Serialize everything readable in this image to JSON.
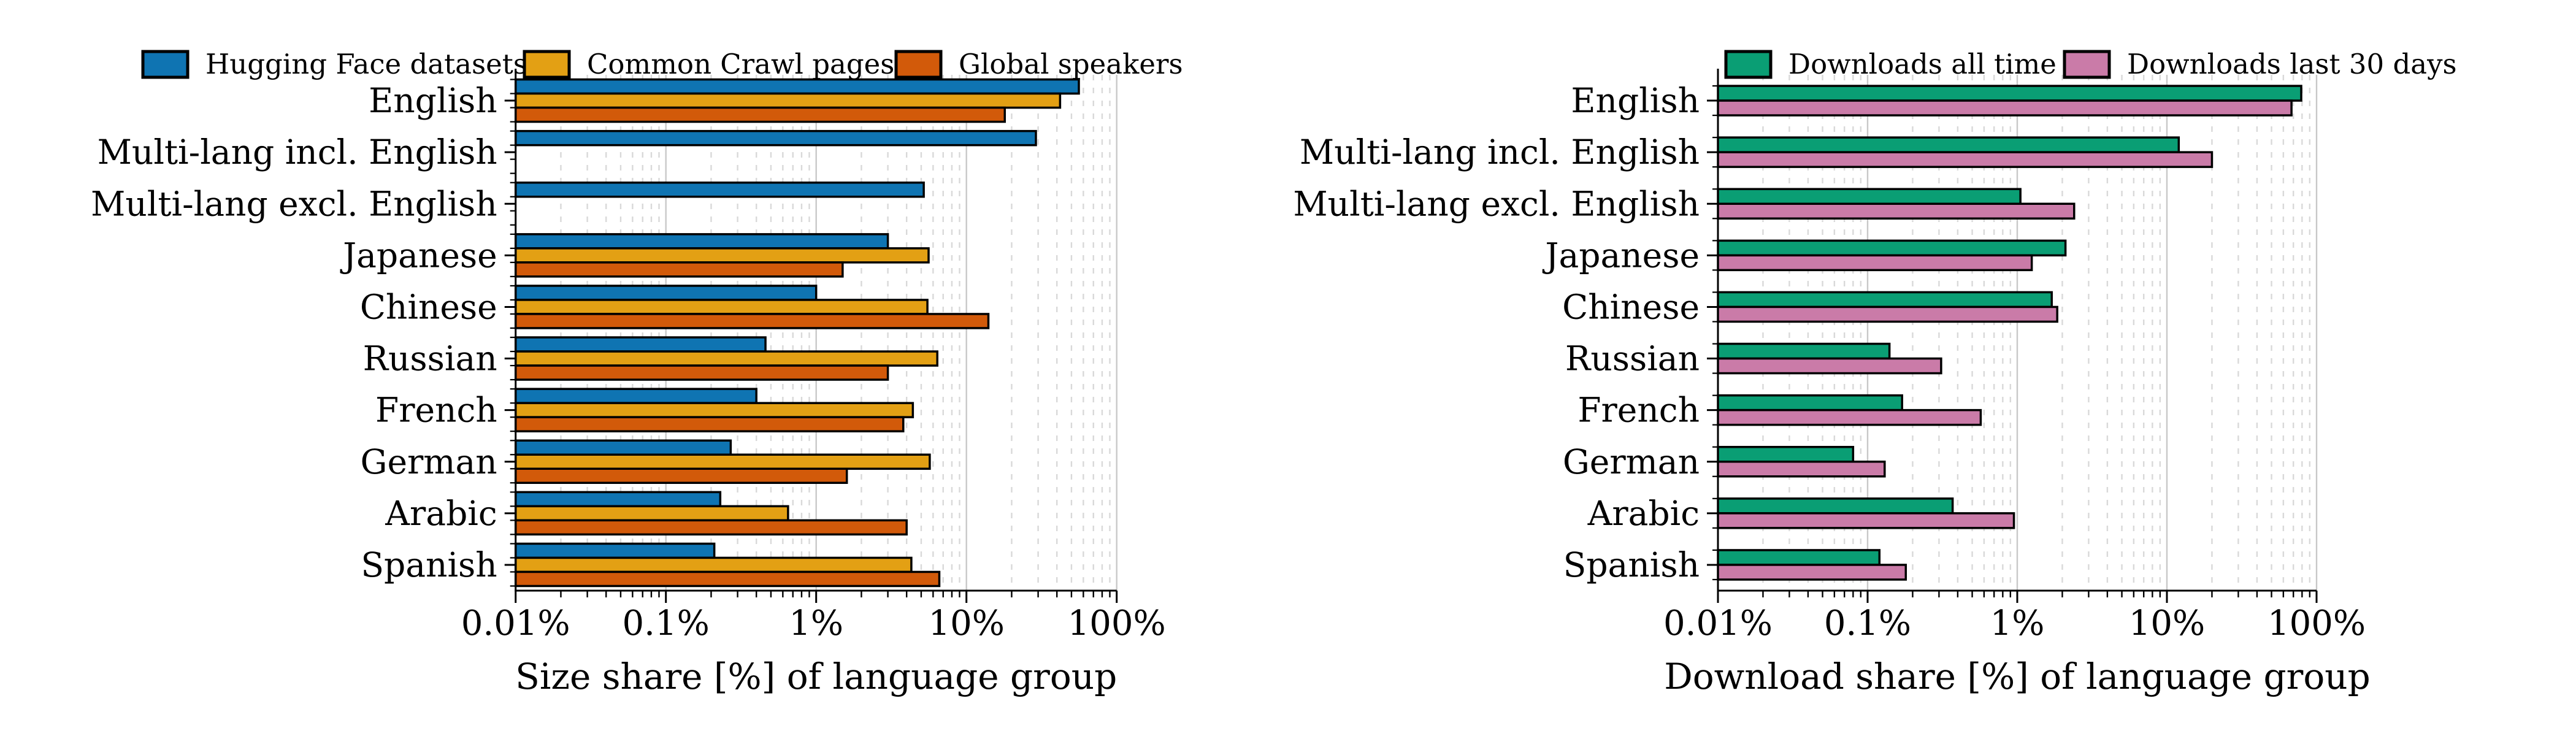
{
  "page": {
    "background": "#ffffff",
    "text_color": "#000000",
    "grid_major_color": "#c8c8c8",
    "grid_minor_color": "#d9d9d9",
    "bar_edge_color": "#000000"
  },
  "chart_data": [
    {
      "type": "bar",
      "orientation": "horizontal",
      "title": "",
      "xlabel": "Size share [%] of language group",
      "ylabel": "",
      "x_scale": "log",
      "xlim_percent": [
        0.01,
        100
      ],
      "x_tick_labels": [
        "0.01%",
        "0.1%",
        "1%",
        "10%",
        "100%"
      ],
      "x_tick_values": [
        0.01,
        0.1,
        1,
        10,
        100
      ],
      "grid": {
        "major": true,
        "minor": true,
        "minor_style": "dashed"
      },
      "legend_position": "top",
      "categories": [
        "English",
        "Multi-lang incl. English",
        "Multi-lang excl. English",
        "Japanese",
        "Chinese",
        "Russian",
        "French",
        "German",
        "Arabic",
        "Spanish"
      ],
      "series": [
        {
          "name": "Hugging Face datasets",
          "color": "#0f74b2",
          "values": [
            56,
            29,
            5.2,
            3.0,
            1.0,
            0.46,
            0.4,
            0.27,
            0.23,
            0.21
          ]
        },
        {
          "name": "Common Crawl pages",
          "color": "#e3a014",
          "values": [
            42,
            null,
            null,
            5.6,
            5.5,
            6.4,
            4.4,
            5.7,
            0.65,
            4.3
          ]
        },
        {
          "name": "Global speakers",
          "color": "#d25a0a",
          "values": [
            18,
            null,
            null,
            1.5,
            14,
            3.0,
            3.8,
            1.6,
            4.0,
            6.6
          ]
        }
      ]
    },
    {
      "type": "bar",
      "orientation": "horizontal",
      "title": "",
      "xlabel": "Download share [%] of language group",
      "ylabel": "",
      "x_scale": "log",
      "xlim_percent": [
        0.01,
        100
      ],
      "x_tick_labels": [
        "0.01%",
        "0.1%",
        "1%",
        "10%",
        "100%"
      ],
      "x_tick_values": [
        0.01,
        0.1,
        1,
        10,
        100
      ],
      "grid": {
        "major": true,
        "minor": true,
        "minor_style": "dashed"
      },
      "legend_position": "top",
      "categories": [
        "English",
        "Multi-lang incl. English",
        "Multi-lang excl. English",
        "Japanese",
        "Chinese",
        "Russian",
        "French",
        "German",
        "Arabic",
        "Spanish"
      ],
      "series": [
        {
          "name": "Downloads all time",
          "color": "#0a9e74",
          "values": [
            79,
            12,
            1.05,
            2.1,
            1.7,
            0.14,
            0.17,
            0.08,
            0.37,
            0.12
          ]
        },
        {
          "name": "Downloads last 30 days",
          "color": "#ca7ba8",
          "values": [
            68,
            20,
            2.4,
            1.25,
            1.85,
            0.31,
            0.57,
            0.13,
            0.95,
            0.18
          ]
        }
      ]
    }
  ]
}
